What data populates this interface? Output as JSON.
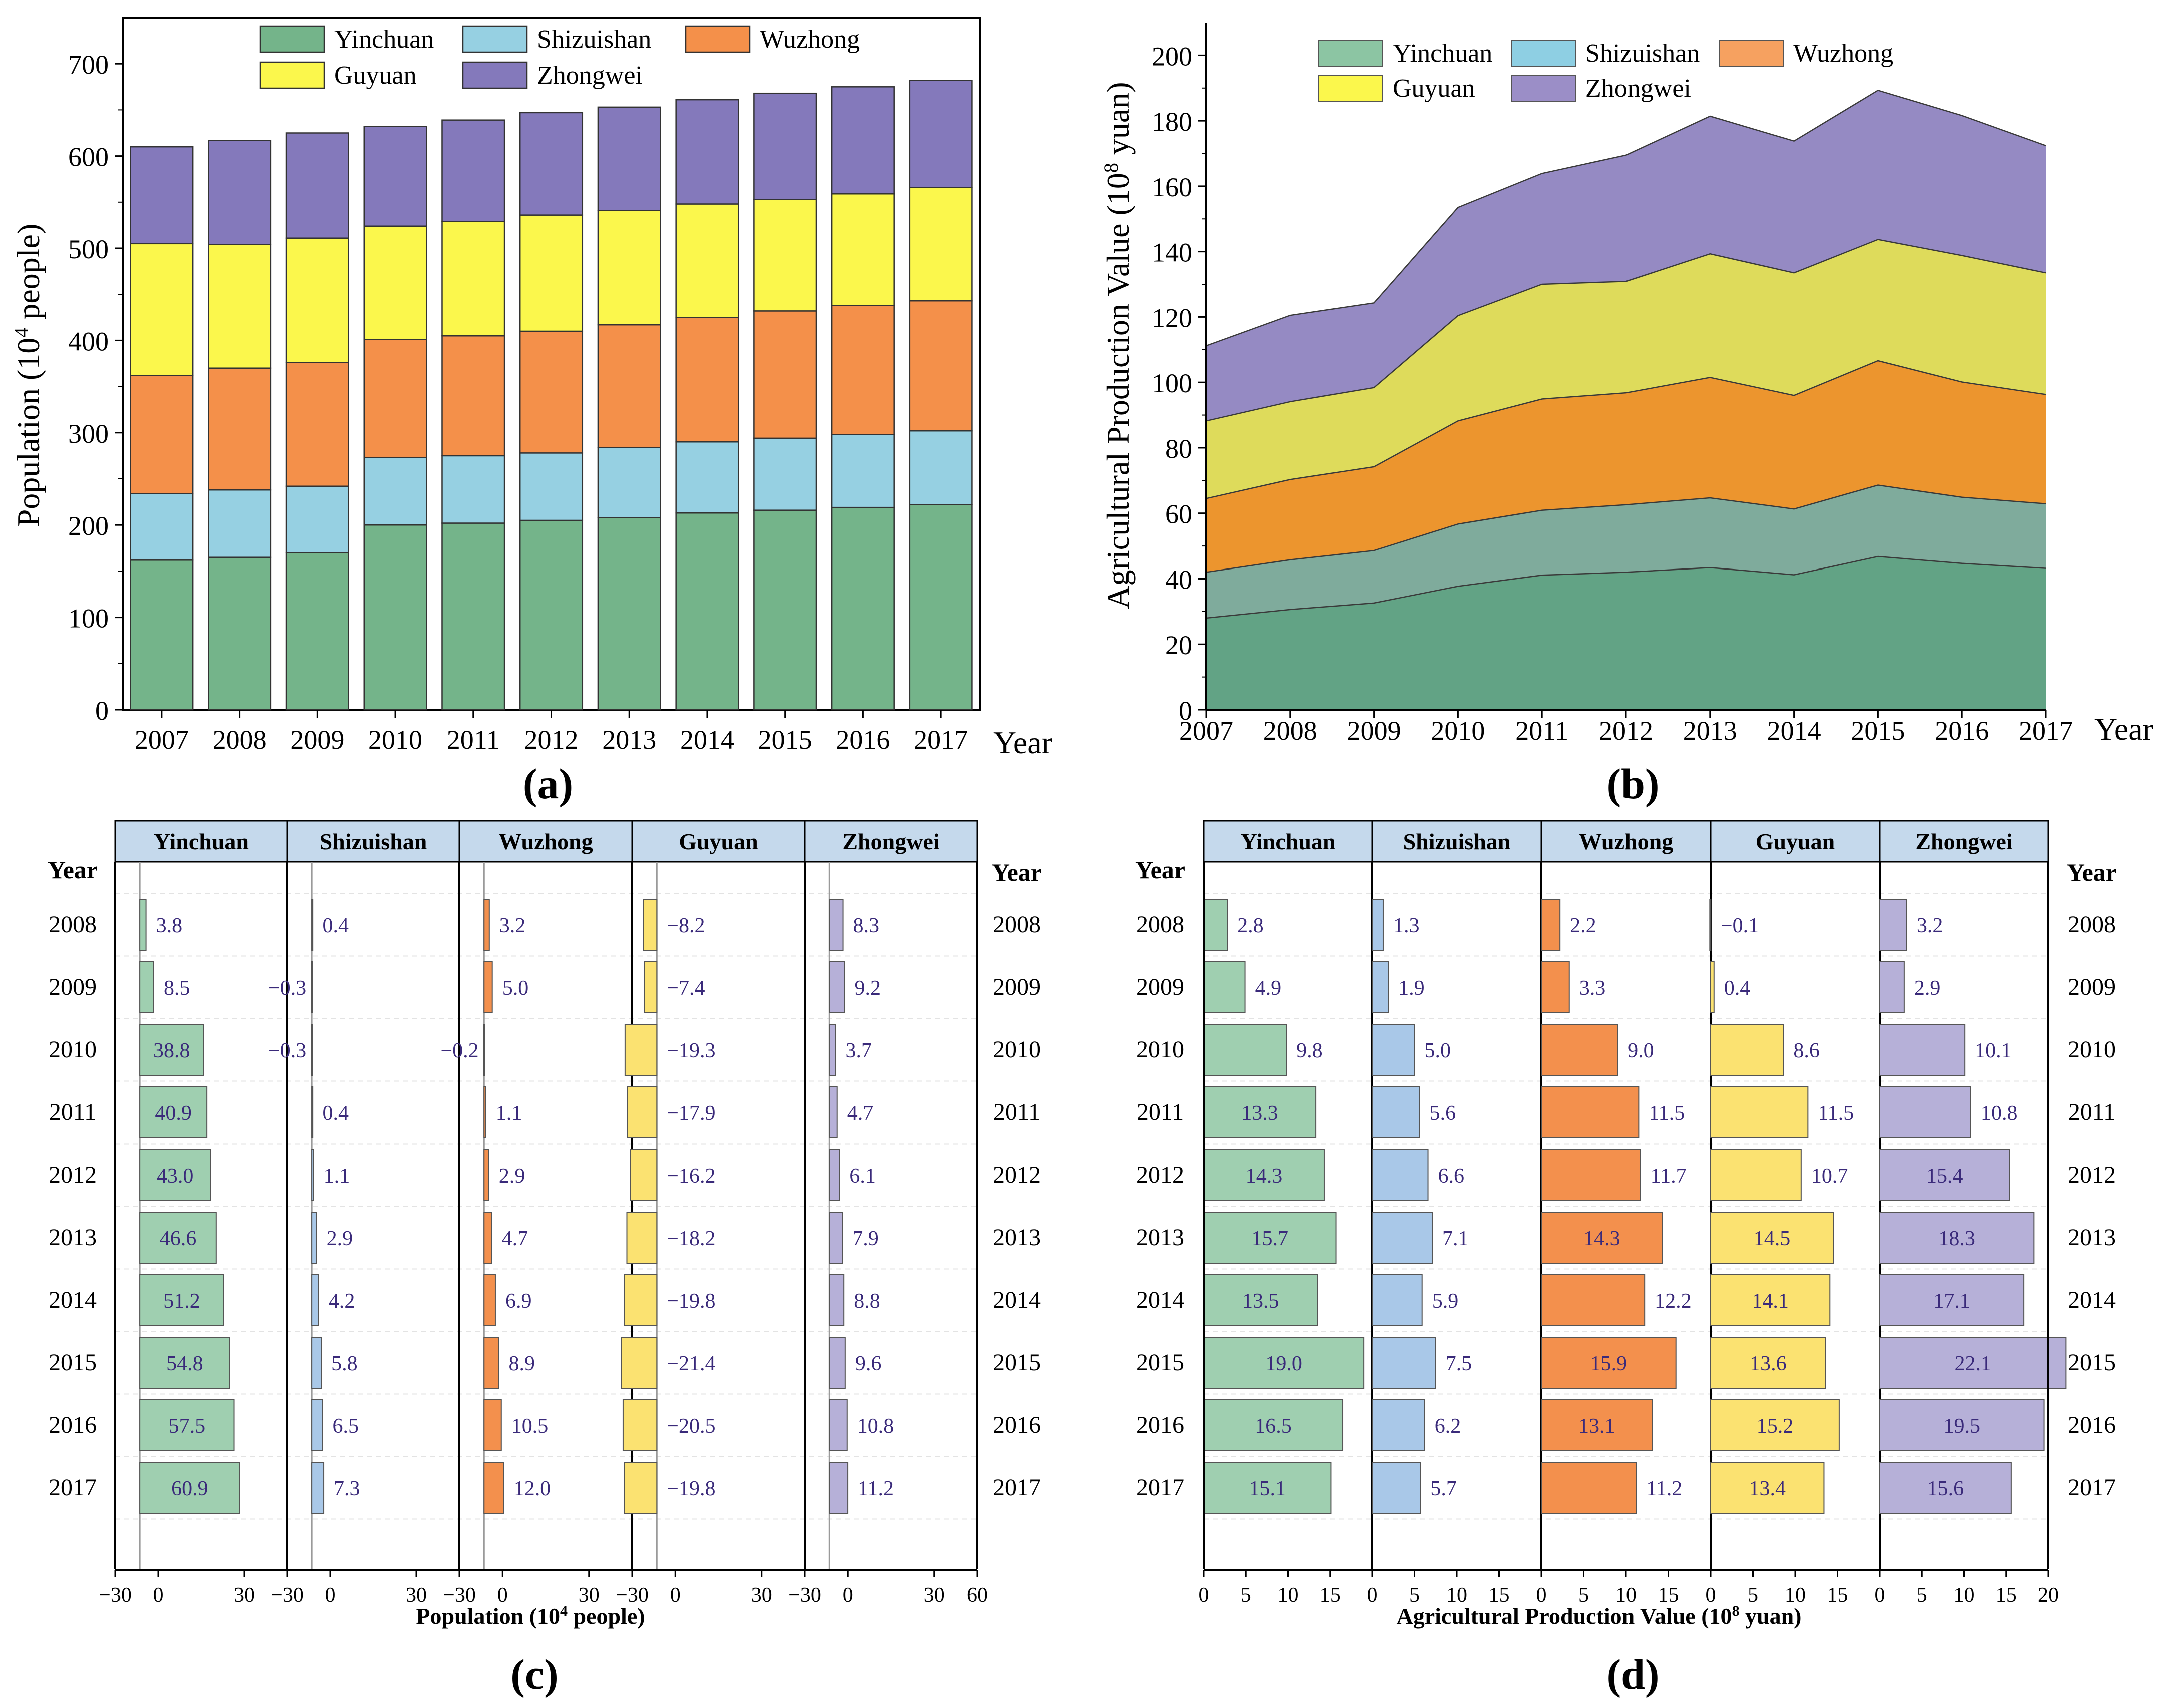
{
  "panel_labels": {
    "a": "(a)",
    "b": "(b)",
    "c": "(c)",
    "d": "(d)"
  },
  "colors": {
    "a": {
      "Yinchuan": "#74b48a",
      "Shizuishan": "#96d0e2",
      "Wuzhong": "#f4904a",
      "Guyuan": "#fbf74c",
      "Zhongwei": "#8479bb"
    },
    "b": {
      "Yinchuan": "#62a385",
      "Shizuishan": "#7fab9c",
      "Wuzhong": "#ec952e",
      "Guyuan": "#dedb5b",
      "Zhongwei": "#958ac3"
    },
    "b_legend": {
      "Yinchuan": "#8cc5a3",
      "Shizuishan": "#8ecfe3",
      "Wuzhong": "#f6a160",
      "Guyuan": "#fbf74c",
      "Zhongwei": "#9b8ec7"
    },
    "cd": {
      "Yinchuan": "#9fcfb0",
      "Shizuishan": "#a9c8e8",
      "Wuzhong": "#f3904d",
      "Guyuan": "#fbe271",
      "Zhongwei": "#b6b0d8"
    },
    "label_text": "#3a2a7a",
    "header_bg": "#c5d9ec"
  },
  "chart_data": [
    {
      "id": "a",
      "type": "bar",
      "stacked": true,
      "title": "",
      "xlabel": "Year",
      "ylabel_main": "Population (10",
      "ylabel_sup": "4",
      "ylabel_end": " people)",
      "ylim": [
        0,
        750
      ],
      "yticks": [
        0,
        100,
        200,
        300,
        400,
        500,
        600,
        700
      ],
      "categories": [
        "2007",
        "2008",
        "2009",
        "2010",
        "2011",
        "2012",
        "2013",
        "2014",
        "2015",
        "2016",
        "2017"
      ],
      "legend_row1": [
        "Yinchuan",
        "Shizuishan",
        "Wuzhong"
      ],
      "legend_row2": [
        "Guyuan",
        "Zhongwei"
      ],
      "series": [
        {
          "name": "Yinchuan",
          "values": [
            162,
            165,
            170,
            200,
            202,
            205,
            208,
            213,
            216,
            219,
            222
          ]
        },
        {
          "name": "Shizuishan",
          "values": [
            72,
            73,
            72,
            73,
            73,
            73,
            76,
            77,
            78,
            79,
            80
          ]
        },
        {
          "name": "Wuzhong",
          "values": [
            128,
            132,
            134,
            128,
            130,
            132,
            133,
            135,
            138,
            140,
            141
          ]
        },
        {
          "name": "Guyuan",
          "values": [
            143,
            134,
            135,
            123,
            124,
            126,
            124,
            123,
            121,
            121,
            123
          ]
        },
        {
          "name": "Zhongwei",
          "values": [
            105,
            113,
            114,
            108,
            110,
            111,
            112,
            113,
            115,
            116,
            116
          ]
        }
      ]
    },
    {
      "id": "b",
      "type": "area",
      "stacked": true,
      "title": "",
      "xlabel": "Year",
      "ylabel_main": "Agricultural Production Value (10",
      "ylabel_sup": "8",
      "ylabel_end": " yuan)",
      "ylim": [
        0,
        210
      ],
      "yticks": [
        0,
        20,
        40,
        60,
        80,
        100,
        120,
        140,
        160,
        180,
        200
      ],
      "x": [
        "2007",
        "2008",
        "2009",
        "2010",
        "2011",
        "2012",
        "2013",
        "2014",
        "2015",
        "2016",
        "2017"
      ],
      "legend_row1": [
        "Yinchuan",
        "Shizuishan",
        "Wuzhong"
      ],
      "legend_row2": [
        "Guyuan",
        "Zhongwei"
      ],
      "series": [
        {
          "name": "Yinchuan",
          "values": [
            28.0,
            30.6,
            32.6,
            37.7,
            41.1,
            42.0,
            43.4,
            41.2,
            46.8,
            44.7,
            43.2
          ]
        },
        {
          "name": "Shizuishan",
          "values": [
            14.0,
            15.2,
            16.0,
            19.0,
            19.8,
            20.6,
            21.3,
            20.1,
            21.8,
            20.2,
            19.7
          ]
        },
        {
          "name": "Wuzhong",
          "values": [
            22.5,
            24.5,
            25.6,
            31.5,
            34.0,
            34.2,
            36.8,
            34.7,
            38.0,
            35.2,
            33.4
          ]
        },
        {
          "name": "Guyuan",
          "values": [
            23.7,
            23.8,
            24.2,
            32.2,
            35.1,
            34.1,
            37.8,
            37.5,
            37.1,
            38.7,
            37.2
          ]
        },
        {
          "name": "Zhongwei",
          "values": [
            23.0,
            26.4,
            25.9,
            33.1,
            33.9,
            38.6,
            42.1,
            40.3,
            45.6,
            42.8,
            38.9
          ]
        }
      ]
    },
    {
      "id": "c",
      "type": "bar",
      "orientation": "horizontal",
      "title": "",
      "xlabel_main": "Population  (10",
      "xlabel_sup": "4",
      "xlabel_end": " people)",
      "year_header": "Year",
      "regions": [
        "Yinchuan",
        "Shizuishan",
        "Wuzhong",
        "Guyuan",
        "Zhongwei"
      ],
      "region_axis_min": -30,
      "region_axis_max": 30,
      "bar_axis_max": 60,
      "xtick_labels": [
        "−30",
        "0",
        "30",
        "−30",
        "0",
        "30",
        "−30",
        "0",
        "30",
        "−30",
        "0",
        "30",
        "−30",
        "0",
        "30",
        "60"
      ],
      "categories": [
        "2008",
        "2009",
        "2010",
        "2011",
        "2012",
        "2013",
        "2014",
        "2015",
        "2016",
        "2017"
      ],
      "series": [
        {
          "name": "Yinchuan",
          "values": [
            3.8,
            8.5,
            38.8,
            40.9,
            43.0,
            46.6,
            51.2,
            54.8,
            57.5,
            60.9
          ],
          "labels": [
            "3.8",
            "8.5",
            "38.8",
            "40.9",
            "43.0",
            "46.6",
            "51.2",
            "54.8",
            "57.5",
            "60.9"
          ]
        },
        {
          "name": "Shizuishan",
          "values": [
            0.4,
            -0.3,
            -0.3,
            0.4,
            1.1,
            2.9,
            4.2,
            5.8,
            6.5,
            7.3
          ],
          "labels": [
            "0.4",
            "−0.3",
            "−0.3",
            "0.4",
            "1.1",
            "2.9",
            "4.2",
            "5.8",
            "6.5",
            "7.3"
          ]
        },
        {
          "name": "Wuzhong",
          "values": [
            3.2,
            5.0,
            -0.2,
            1.1,
            2.9,
            4.7,
            6.9,
            8.9,
            10.5,
            12.0
          ],
          "labels": [
            "3.2",
            "5.0",
            "−0.2",
            "1.1",
            "2.9",
            "4.7",
            "6.9",
            "8.9",
            "10.5",
            "12.0"
          ]
        },
        {
          "name": "Guyuan",
          "values": [
            -8.2,
            -7.4,
            -19.3,
            -17.9,
            -16.2,
            -18.2,
            -19.8,
            -21.4,
            -20.5,
            -19.8
          ],
          "labels": [
            "−8.2",
            "−7.4",
            "−19.3",
            "−17.9",
            "−16.2",
            "−18.2",
            "−19.8",
            "−21.4",
            "−20.5",
            "−19.8"
          ]
        },
        {
          "name": "Zhongwei",
          "values": [
            8.3,
            9.2,
            3.7,
            4.7,
            6.1,
            7.9,
            8.8,
            9.6,
            10.8,
            11.2
          ],
          "labels": [
            "8.3",
            "9.2",
            "3.7",
            "4.7",
            "6.1",
            "7.9",
            "8.8",
            "9.6",
            "10.8",
            "11.2"
          ]
        }
      ]
    },
    {
      "id": "d",
      "type": "bar",
      "orientation": "horizontal",
      "title": "",
      "xlabel_main": "Agricultural Production Value  (10",
      "xlabel_sup": "8",
      "xlabel_end": " yuan)",
      "year_header": "Year",
      "regions": [
        "Yinchuan",
        "Shizuishan",
        "Wuzhong",
        "Guyuan",
        "Zhongwei"
      ],
      "region_axis_max": [
        20,
        20,
        20,
        20,
        20
      ],
      "xtick_labels": [
        "0",
        "5",
        "10",
        "15",
        "0",
        "5",
        "10",
        "15",
        "0",
        "5",
        "10",
        "15",
        "0",
        "5",
        "10",
        "15",
        "0",
        "5",
        "10",
        "15",
        "20"
      ],
      "categories": [
        "2008",
        "2009",
        "2010",
        "2011",
        "2012",
        "2013",
        "2014",
        "2015",
        "2016",
        "2017"
      ],
      "series": [
        {
          "name": "Yinchuan",
          "values": [
            2.8,
            4.9,
            9.8,
            13.3,
            14.3,
            15.7,
            13.5,
            19.0,
            16.5,
            15.1
          ],
          "labels": [
            "2.8",
            "4.9",
            "9.8",
            "13.3",
            "14.3",
            "15.7",
            "13.5",
            "19.0",
            "16.5",
            "15.1"
          ]
        },
        {
          "name": "Shizuishan",
          "values": [
            1.3,
            1.9,
            5.0,
            5.6,
            6.6,
            7.1,
            5.9,
            7.5,
            6.2,
            5.7
          ],
          "labels": [
            "1.3",
            "1.9",
            "5.0",
            "5.6",
            "6.6",
            "7.1",
            "5.9",
            "7.5",
            "6.2",
            "5.7"
          ]
        },
        {
          "name": "Wuzhong",
          "values": [
            2.2,
            3.3,
            9.0,
            11.5,
            11.7,
            14.3,
            12.2,
            15.9,
            13.1,
            11.2
          ],
          "labels": [
            "2.2",
            "3.3",
            "9.0",
            "11.5",
            "11.7",
            "14.3",
            "12.2",
            "15.9",
            "13.1",
            "11.2"
          ]
        },
        {
          "name": "Guyuan",
          "values": [
            -0.1,
            0.4,
            8.6,
            11.5,
            10.7,
            14.5,
            14.1,
            13.6,
            15.2,
            13.4
          ],
          "labels": [
            "−0.1",
            "0.4",
            "8.6",
            "11.5",
            "10.7",
            "14.5",
            "14.1",
            "13.6",
            "15.2",
            "13.4"
          ]
        },
        {
          "name": "Zhongwei",
          "values": [
            3.2,
            2.9,
            10.1,
            10.8,
            15.4,
            18.3,
            17.1,
            22.1,
            19.5,
            15.6
          ],
          "labels": [
            "3.2",
            "2.9",
            "10.1",
            "10.8",
            "15.4",
            "18.3",
            "17.1",
            "22.1",
            "19.5",
            "15.6"
          ]
        }
      ]
    }
  ]
}
